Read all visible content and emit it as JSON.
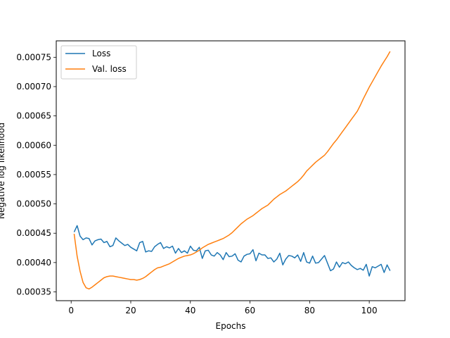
{
  "chart_data": {
    "type": "line",
    "title": "",
    "xlabel": "Epochs",
    "ylabel": "Negative log likelihood",
    "xlim": [
      -5,
      112
    ],
    "ylim": [
      0.000335,
      0.000778
    ],
    "x_ticks": [
      0,
      20,
      40,
      60,
      80,
      100
    ],
    "y_ticks": [
      0.00035,
      0.0004,
      0.00045,
      0.0005,
      0.00055,
      0.0006,
      0.00065,
      0.0007,
      0.00075
    ],
    "y_tick_labels": [
      "0.00035",
      "0.00040",
      "0.00045",
      "0.00050",
      "0.00055",
      "0.00060",
      "0.00065",
      "0.00070",
      "0.00075"
    ],
    "grid": false,
    "legend_position": "top-left",
    "series": [
      {
        "name": "Loss",
        "color": "#1f77b4",
        "x": [
          1,
          2,
          3,
          4,
          5,
          6,
          7,
          8,
          9,
          10,
          11,
          12,
          13,
          14,
          15,
          16,
          17,
          18,
          19,
          20,
          21,
          22,
          23,
          24,
          25,
          26,
          27,
          28,
          29,
          30,
          31,
          32,
          33,
          34,
          35,
          36,
          37,
          38,
          39,
          40,
          41,
          42,
          43,
          44,
          45,
          46,
          47,
          48,
          49,
          50,
          51,
          52,
          53,
          54,
          55,
          56,
          57,
          58,
          59,
          60,
          61,
          62,
          63,
          64,
          65,
          66,
          67,
          68,
          69,
          70,
          71,
          72,
          73,
          74,
          75,
          76,
          77,
          78,
          79,
          80,
          81,
          82,
          83,
          84,
          85,
          86,
          87,
          88,
          89,
          90,
          91,
          92,
          93,
          94,
          95,
          96,
          97,
          98,
          99,
          100,
          101,
          102,
          103,
          104,
          105,
          106,
          107
        ],
        "values": [
          0.000452,
          0.000463,
          0.000445,
          0.000439,
          0.000442,
          0.000441,
          0.00043,
          0.000437,
          0.000439,
          0.00044,
          0.000434,
          0.000436,
          0.000427,
          0.000429,
          0.000442,
          0.000437,
          0.000433,
          0.000429,
          0.000431,
          0.000426,
          0.000423,
          0.00042,
          0.000434,
          0.000436,
          0.000418,
          0.00042,
          0.000419,
          0.000427,
          0.000431,
          0.000434,
          0.000424,
          0.000427,
          0.000425,
          0.000428,
          0.000416,
          0.000424,
          0.000417,
          0.00042,
          0.000416,
          0.000428,
          0.000421,
          0.00042,
          0.000426,
          0.000407,
          0.00042,
          0.000421,
          0.000413,
          0.000411,
          0.000417,
          0.000413,
          0.000405,
          0.000417,
          0.00041,
          0.000411,
          0.000415,
          0.000404,
          0.000401,
          0.000411,
          0.000414,
          0.000415,
          0.000422,
          0.000403,
          0.000416,
          0.000413,
          0.000413,
          0.000407,
          0.000408,
          0.000401,
          0.000406,
          0.000416,
          0.000396,
          0.000406,
          0.000412,
          0.000411,
          0.000408,
          0.000413,
          0.000402,
          0.000417,
          0.000401,
          0.000399,
          0.000411,
          0.000399,
          0.0004,
          0.000406,
          0.000412,
          0.000399,
          0.000386,
          0.000389,
          0.000401,
          0.000392,
          0.0004,
          0.000398,
          0.000401,
          0.000395,
          0.000391,
          0.000388,
          0.00039,
          0.000387,
          0.000397,
          0.000377,
          0.000393,
          0.000391,
          0.000394,
          0.000397,
          0.000383,
          0.000396,
          0.000386
        ]
      },
      {
        "name": "Val. loss",
        "color": "#ff7f0e",
        "x": [
          1,
          2,
          3,
          4,
          5,
          6,
          7,
          8,
          9,
          10,
          11,
          12,
          13,
          14,
          15,
          16,
          17,
          18,
          19,
          20,
          21,
          22,
          23,
          24,
          25,
          26,
          27,
          28,
          29,
          30,
          31,
          32,
          33,
          34,
          35,
          36,
          37,
          38,
          39,
          40,
          41,
          42,
          43,
          44,
          45,
          46,
          47,
          48,
          49,
          50,
          51,
          52,
          53,
          54,
          55,
          56,
          57,
          58,
          59,
          60,
          61,
          62,
          63,
          64,
          65,
          66,
          67,
          68,
          69,
          70,
          71,
          72,
          73,
          74,
          75,
          76,
          77,
          78,
          79,
          80,
          81,
          82,
          83,
          84,
          85,
          86,
          87,
          88,
          89,
          90,
          91,
          92,
          93,
          94,
          95,
          96,
          97,
          98,
          99,
          100,
          101,
          102,
          103,
          104,
          105,
          106,
          107
        ],
        "values": [
          0.000449,
          0.000411,
          0.000385,
          0.000366,
          0.000357,
          0.000355,
          0.000358,
          0.000362,
          0.000366,
          0.00037,
          0.000374,
          0.000376,
          0.000377,
          0.000377,
          0.000376,
          0.000375,
          0.000374,
          0.000373,
          0.000372,
          0.000371,
          0.000371,
          0.00037,
          0.000371,
          0.000373,
          0.000376,
          0.00038,
          0.000384,
          0.000388,
          0.000391,
          0.000392,
          0.000394,
          0.000396,
          0.000398,
          0.000401,
          0.000404,
          0.000407,
          0.000409,
          0.000411,
          0.000412,
          0.000413,
          0.000415,
          0.000418,
          0.000421,
          0.000425,
          0.000428,
          0.000431,
          0.000433,
          0.000435,
          0.000437,
          0.000439,
          0.000441,
          0.000444,
          0.000447,
          0.000451,
          0.000456,
          0.000461,
          0.000466,
          0.00047,
          0.000474,
          0.000477,
          0.00048,
          0.000484,
          0.000488,
          0.000492,
          0.000495,
          0.000498,
          0.000503,
          0.000508,
          0.000512,
          0.000516,
          0.000519,
          0.000522,
          0.000526,
          0.00053,
          0.000534,
          0.000538,
          0.000543,
          0.000549,
          0.000556,
          0.000561,
          0.000566,
          0.000571,
          0.000575,
          0.000579,
          0.000583,
          0.000589,
          0.000596,
          0.000603,
          0.000609,
          0.000616,
          0.000623,
          0.00063,
          0.000637,
          0.000644,
          0.000651,
          0.000658,
          0.000668,
          0.000679,
          0.000689,
          0.000699,
          0.000708,
          0.000717,
          0.000726,
          0.000735,
          0.000743,
          0.000751,
          0.00076
        ]
      }
    ]
  }
}
